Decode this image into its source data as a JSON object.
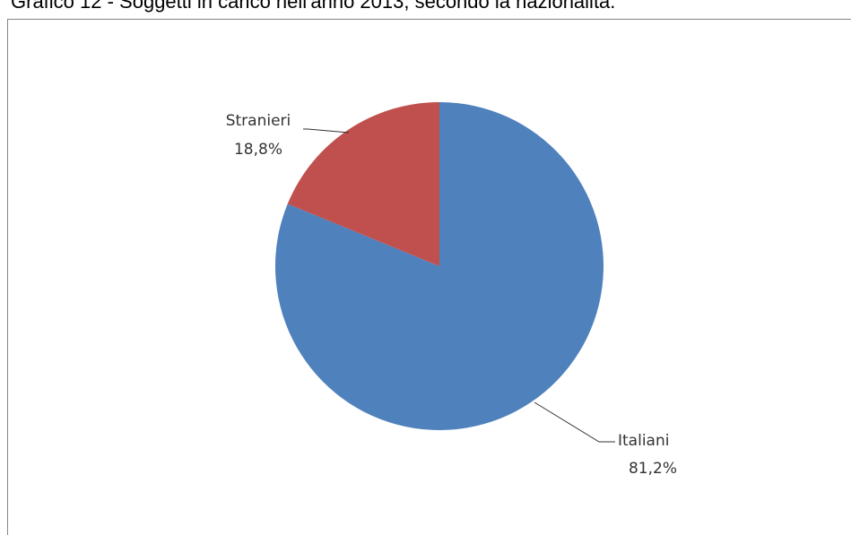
{
  "page": {
    "title": "Grafico 12 - Soggetti in carico nell'anno 2013, secondo la nazionalità."
  },
  "chart_data": {
    "type": "pie",
    "title": "",
    "slices": [
      {
        "label": "Italiani",
        "value": 81.2,
        "value_label": "81,2%",
        "color": "#4F81BD"
      },
      {
        "label": "Stranieri",
        "value": 18.8,
        "value_label": "18,8%",
        "color": "#C0504D"
      }
    ],
    "start_angle_deg": 0,
    "direction": "clockwise",
    "legend": "none"
  }
}
